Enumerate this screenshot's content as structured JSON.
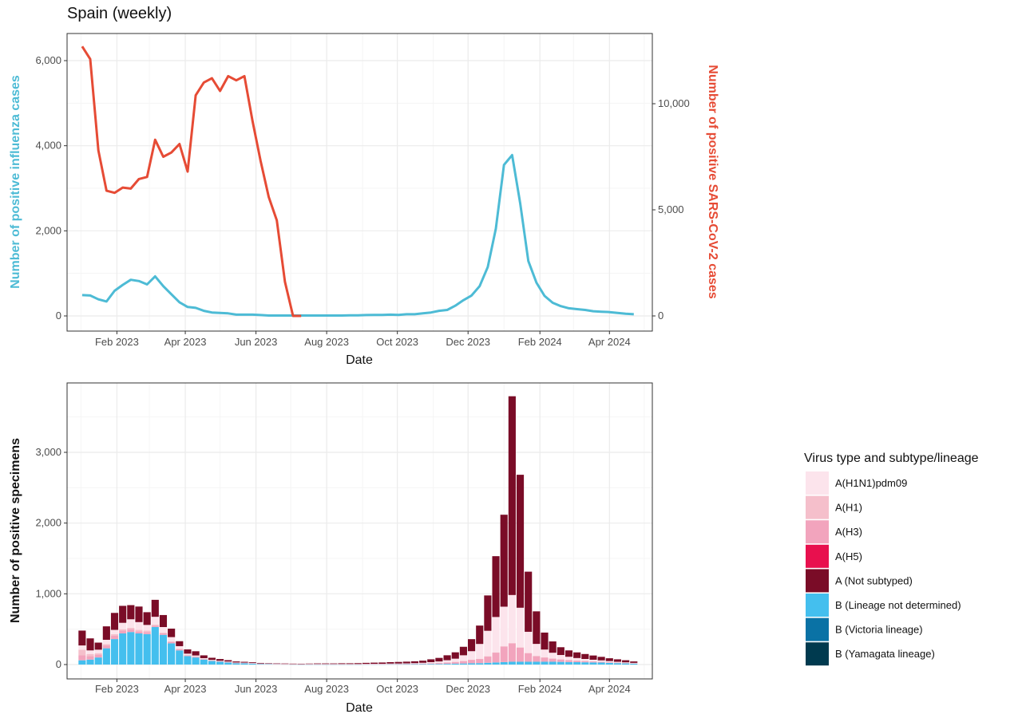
{
  "title": "Spain (weekly)",
  "colors": {
    "influenza": "#4DBBD5",
    "sars": "#E64B35",
    "grid_major": "#EBEBEB",
    "grid_minor": "#F5F5F5",
    "panel_border": "#333333"
  },
  "chart_data": [
    {
      "type": "line",
      "title": "Spain (weekly)",
      "xlabel": "Date",
      "ylabel_left": "Number of positive influenza cases",
      "ylabel_right": "Number of positive SARS-CoV-2 cases",
      "x_ticks": [
        "Feb 2023",
        "Apr 2023",
        "Jun 2023",
        "Aug 2023",
        "Oct 2023",
        "Dec 2023",
        "Feb 2024",
        "Apr 2024"
      ],
      "y_left_ticks": [
        "0",
        "2,000",
        "4,000",
        "6,000"
      ],
      "y_right_ticks": [
        "0",
        "5,000",
        "10,000"
      ],
      "y_left_lim": [
        0,
        6000
      ],
      "y_right_lim": [
        0,
        10000
      ],
      "grid": true,
      "series": [
        {
          "name": "Number of positive influenza cases",
          "axis": "left",
          "color": "#4DBBD5",
          "x": [
            "2023-01-02",
            "2023-01-09",
            "2023-01-16",
            "2023-01-23",
            "2023-01-30",
            "2023-02-06",
            "2023-02-13",
            "2023-02-20",
            "2023-02-27",
            "2023-03-06",
            "2023-03-13",
            "2023-03-20",
            "2023-03-27",
            "2023-04-03",
            "2023-04-10",
            "2023-04-17",
            "2023-04-24",
            "2023-05-01",
            "2023-05-08",
            "2023-05-15",
            "2023-05-22",
            "2023-05-29",
            "2023-06-05",
            "2023-06-12",
            "2023-06-19",
            "2023-06-26",
            "2023-07-03",
            "2023-07-10",
            "2023-07-17",
            "2023-07-24",
            "2023-07-31",
            "2023-08-07",
            "2023-08-14",
            "2023-08-21",
            "2023-08-28",
            "2023-09-04",
            "2023-09-11",
            "2023-09-18",
            "2023-09-25",
            "2023-10-02",
            "2023-10-09",
            "2023-10-16",
            "2023-10-23",
            "2023-10-30",
            "2023-11-06",
            "2023-11-13",
            "2023-11-20",
            "2023-11-27",
            "2023-12-04",
            "2023-12-11",
            "2023-12-18",
            "2023-12-25",
            "2024-01-01",
            "2024-01-08",
            "2024-01-15",
            "2024-01-22",
            "2024-01-29",
            "2024-02-05",
            "2024-02-12",
            "2024-02-19",
            "2024-02-26",
            "2024-03-04",
            "2024-03-11",
            "2024-03-18",
            "2024-03-25",
            "2024-04-01",
            "2024-04-08",
            "2024-04-15",
            "2024-04-22"
          ],
          "values": [
            490,
            480,
            390,
            340,
            590,
            730,
            850,
            820,
            740,
            930,
            700,
            510,
            320,
            210,
            190,
            120,
            80,
            70,
            60,
            30,
            30,
            30,
            20,
            10,
            10,
            10,
            10,
            10,
            10,
            10,
            10,
            10,
            10,
            15,
            15,
            20,
            25,
            25,
            30,
            25,
            40,
            40,
            60,
            80,
            120,
            140,
            240,
            370,
            480,
            700,
            1150,
            2050,
            3550,
            3780,
            2650,
            1290,
            780,
            470,
            310,
            230,
            180,
            160,
            140,
            110,
            100,
            90,
            70,
            50,
            40
          ]
        },
        {
          "name": "Number of positive SARS-CoV-2 cases",
          "axis": "right",
          "color": "#E64B35",
          "x": [
            "2023-01-02",
            "2023-01-09",
            "2023-01-16",
            "2023-01-23",
            "2023-01-30",
            "2023-02-06",
            "2023-02-13",
            "2023-02-20",
            "2023-02-27",
            "2023-03-06",
            "2023-03-13",
            "2023-03-20",
            "2023-03-27",
            "2023-04-03",
            "2023-04-10",
            "2023-04-17",
            "2023-04-24",
            "2023-05-01",
            "2023-05-08",
            "2023-05-15",
            "2023-05-22",
            "2023-05-29",
            "2023-06-05",
            "2023-06-12",
            "2023-06-19",
            "2023-06-26",
            "2023-07-03",
            "2023-07-10"
          ],
          "values": [
            12700,
            12100,
            7800,
            5900,
            5800,
            6050,
            6000,
            6450,
            6550,
            8300,
            7500,
            7700,
            8100,
            6800,
            10400,
            11000,
            11200,
            10600,
            11300,
            11100,
            11300,
            9200,
            7300,
            5600,
            4500,
            1600,
            0,
            0
          ]
        }
      ]
    },
    {
      "type": "bar",
      "stacked": true,
      "xlabel": "Date",
      "ylabel": "Number of positive specimens",
      "x_ticks": [
        "Feb 2023",
        "Apr 2023",
        "Jun 2023",
        "Aug 2023",
        "Oct 2023",
        "Dec 2023",
        "Feb 2024",
        "Apr 2024"
      ],
      "y_ticks": [
        "0",
        "1,000",
        "2,000",
        "3,000"
      ],
      "ylim": [
        0,
        3700
      ],
      "grid": true,
      "legend_title": "Virus type and subtype/lineage",
      "legend_position": "right",
      "legend": [
        {
          "label": "A(H1N1)pdm09",
          "color": "#FCE4EC"
        },
        {
          "label": "A(H1)",
          "color": "#F5BFCB"
        },
        {
          "label": "A(H3)",
          "color": "#F2A4BD"
        },
        {
          "label": "A(H5)",
          "color": "#E8104E"
        },
        {
          "label": "A (Not subtyped)",
          "color": "#7A0C27"
        },
        {
          "label": "B (Lineage not determined)",
          "color": "#44BFEE"
        },
        {
          "label": "B (Victoria lineage)",
          "color": "#0A72A5"
        },
        {
          "label": "B (Yamagata lineage)",
          "color": "#003A4F"
        }
      ],
      "x": [
        "2023-01-02",
        "2023-01-09",
        "2023-01-16",
        "2023-01-23",
        "2023-01-30",
        "2023-02-06",
        "2023-02-13",
        "2023-02-20",
        "2023-02-27",
        "2023-03-06",
        "2023-03-13",
        "2023-03-20",
        "2023-03-27",
        "2023-04-03",
        "2023-04-10",
        "2023-04-17",
        "2023-04-24",
        "2023-05-01",
        "2023-05-08",
        "2023-05-15",
        "2023-05-22",
        "2023-05-29",
        "2023-06-05",
        "2023-06-12",
        "2023-06-19",
        "2023-06-26",
        "2023-07-03",
        "2023-07-10",
        "2023-07-17",
        "2023-07-24",
        "2023-07-31",
        "2023-08-07",
        "2023-08-14",
        "2023-08-21",
        "2023-08-28",
        "2023-09-04",
        "2023-09-11",
        "2023-09-18",
        "2023-09-25",
        "2023-10-02",
        "2023-10-09",
        "2023-10-16",
        "2023-10-23",
        "2023-10-30",
        "2023-11-06",
        "2023-11-13",
        "2023-11-20",
        "2023-11-27",
        "2023-12-04",
        "2023-12-11",
        "2023-12-18",
        "2023-12-25",
        "2024-01-01",
        "2024-01-08",
        "2024-01-15",
        "2024-01-22",
        "2024-01-29",
        "2024-02-05",
        "2024-02-12",
        "2024-02-19",
        "2024-02-26",
        "2024-03-04",
        "2024-03-11",
        "2024-03-18",
        "2024-03-25",
        "2024-04-01",
        "2024-04-08",
        "2024-04-15",
        "2024-04-22"
      ],
      "series": [
        {
          "name": "B (Lineage not determined)",
          "values": [
            60,
            70,
            100,
            230,
            360,
            440,
            460,
            440,
            430,
            530,
            420,
            300,
            200,
            120,
            100,
            70,
            50,
            40,
            30,
            20,
            20,
            15,
            10,
            8,
            6,
            5,
            4,
            3,
            3,
            3,
            3,
            3,
            3,
            3,
            3,
            4,
            4,
            4,
            5,
            5,
            5,
            5,
            6,
            8,
            8,
            10,
            12,
            15,
            18,
            20,
            25,
            30,
            35,
            40,
            40,
            40,
            40,
            40,
            40,
            38,
            36,
            34,
            32,
            30,
            28,
            24,
            20,
            16,
            12
          ]
        },
        {
          "name": "A(H3)",
          "values": [
            70,
            50,
            40,
            40,
            50,
            40,
            40,
            30,
            30,
            20,
            20,
            20,
            15,
            10,
            10,
            8,
            6,
            5,
            5,
            4,
            3,
            3,
            2,
            2,
            2,
            2,
            2,
            2,
            2,
            2,
            2,
            2,
            2,
            2,
            2,
            2,
            3,
            3,
            4,
            4,
            5,
            6,
            8,
            10,
            15,
            20,
            25,
            35,
            50,
            60,
            90,
            140,
            220,
            260,
            200,
            120,
            80,
            60,
            45,
            35,
            28,
            22,
            18,
            15,
            12,
            10,
            8,
            6,
            5
          ]
        },
        {
          "name": "A(H1)",
          "values": [
            80,
            30,
            20,
            20,
            20,
            20,
            20,
            20,
            20,
            15,
            10,
            8,
            5,
            4,
            3,
            2,
            2,
            2,
            2,
            1,
            1,
            1,
            1,
            1,
            1,
            1,
            1,
            1,
            1,
            1,
            1,
            1,
            1,
            1,
            1,
            1,
            1,
            1,
            1,
            1,
            1,
            1,
            1,
            1,
            1,
            1,
            1,
            1,
            1,
            1,
            2,
            2,
            3,
            3,
            3,
            3,
            2,
            2,
            2,
            2,
            1,
            1,
            1,
            1,
            1,
            1,
            1,
            1,
            1
          ]
        },
        {
          "name": "A(H1N1)pdm09",
          "values": [
            60,
            50,
            50,
            60,
            60,
            90,
            120,
            110,
            80,
            110,
            80,
            60,
            40,
            20,
            15,
            10,
            8,
            6,
            5,
            4,
            3,
            3,
            2,
            2,
            2,
            2,
            2,
            2,
            2,
            2,
            2,
            2,
            2,
            2,
            2,
            3,
            3,
            3,
            4,
            5,
            6,
            8,
            10,
            15,
            20,
            30,
            45,
            80,
            120,
            210,
            360,
            500,
            560,
            680,
            560,
            300,
            170,
            110,
            80,
            60,
            45,
            35,
            28,
            22,
            18,
            14,
            10,
            8,
            6
          ]
        },
        {
          "name": "A (Not subtyped)",
          "values": [
            210,
            170,
            100,
            190,
            240,
            240,
            200,
            220,
            180,
            240,
            170,
            120,
            70,
            60,
            60,
            40,
            30,
            25,
            20,
            15,
            12,
            10,
            8,
            6,
            5,
            5,
            4,
            4,
            6,
            8,
            8,
            8,
            10,
            10,
            12,
            14,
            16,
            18,
            20,
            22,
            24,
            26,
            30,
            40,
            50,
            70,
            90,
            120,
            170,
            260,
            500,
            860,
            1300,
            2810,
            1880,
            850,
            460,
            240,
            160,
            110,
            90,
            80,
            70,
            60,
            50,
            40,
            35,
            30,
            20
          ]
        }
      ]
    }
  ]
}
